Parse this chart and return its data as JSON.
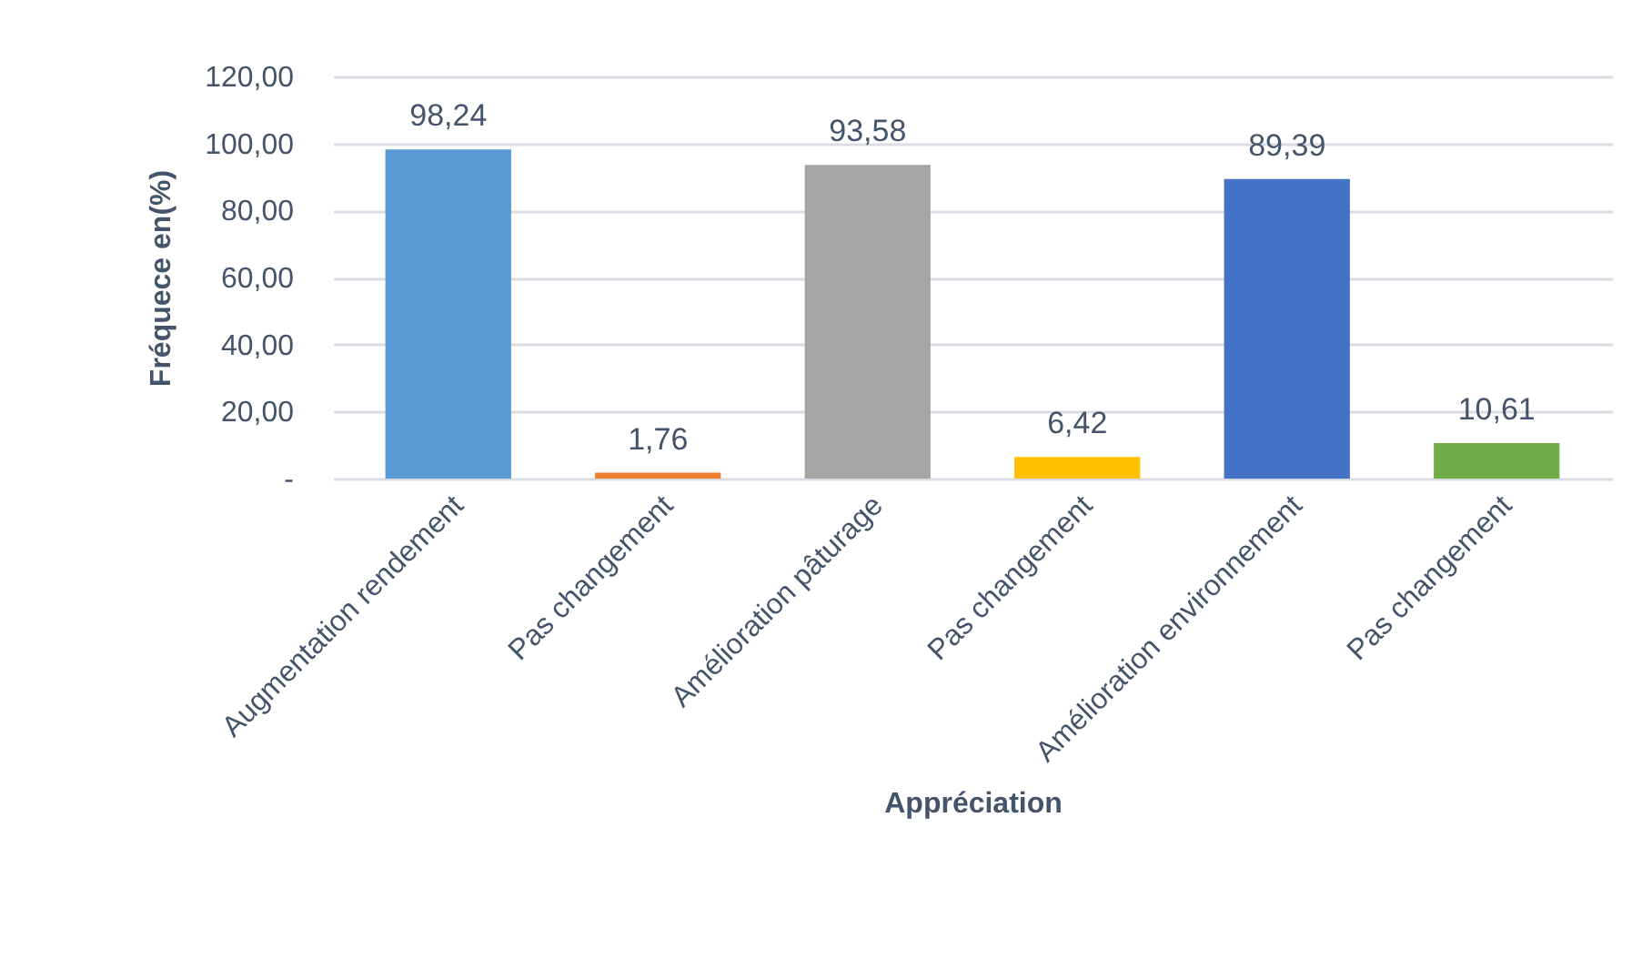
{
  "chart_data": {
    "type": "bar",
    "xlabel": "Appréciation",
    "ylabel": "Fréquece en(%)",
    "categories": [
      "Augmentation rendement",
      "Pas changement",
      "Amélioration pâturage",
      "Pas changement",
      "Amélioration environnement",
      "Pas changement"
    ],
    "values": [
      98.24,
      1.76,
      93.58,
      6.42,
      89.39,
      10.61
    ],
    "colors": [
      "#5b9bd5",
      "#ed7d31",
      "#a5a5a5",
      "#ffc000",
      "#4472c4",
      "#70ad47"
    ],
    "value_labels": [
      "98,24",
      "1,76",
      "93,58",
      "6,42",
      "89,39",
      "10,61"
    ],
    "ylim": [
      0,
      120
    ],
    "yticks": [
      {
        "value": 0,
        "label": "-"
      },
      {
        "value": 20,
        "label": "20,00"
      },
      {
        "value": 40,
        "label": "40,00"
      },
      {
        "value": 60,
        "label": "60,00"
      },
      {
        "value": 80,
        "label": "80,00"
      },
      {
        "value": 100,
        "label": "100,00"
      },
      {
        "value": 120,
        "label": "120,00"
      }
    ],
    "grid": "y"
  }
}
